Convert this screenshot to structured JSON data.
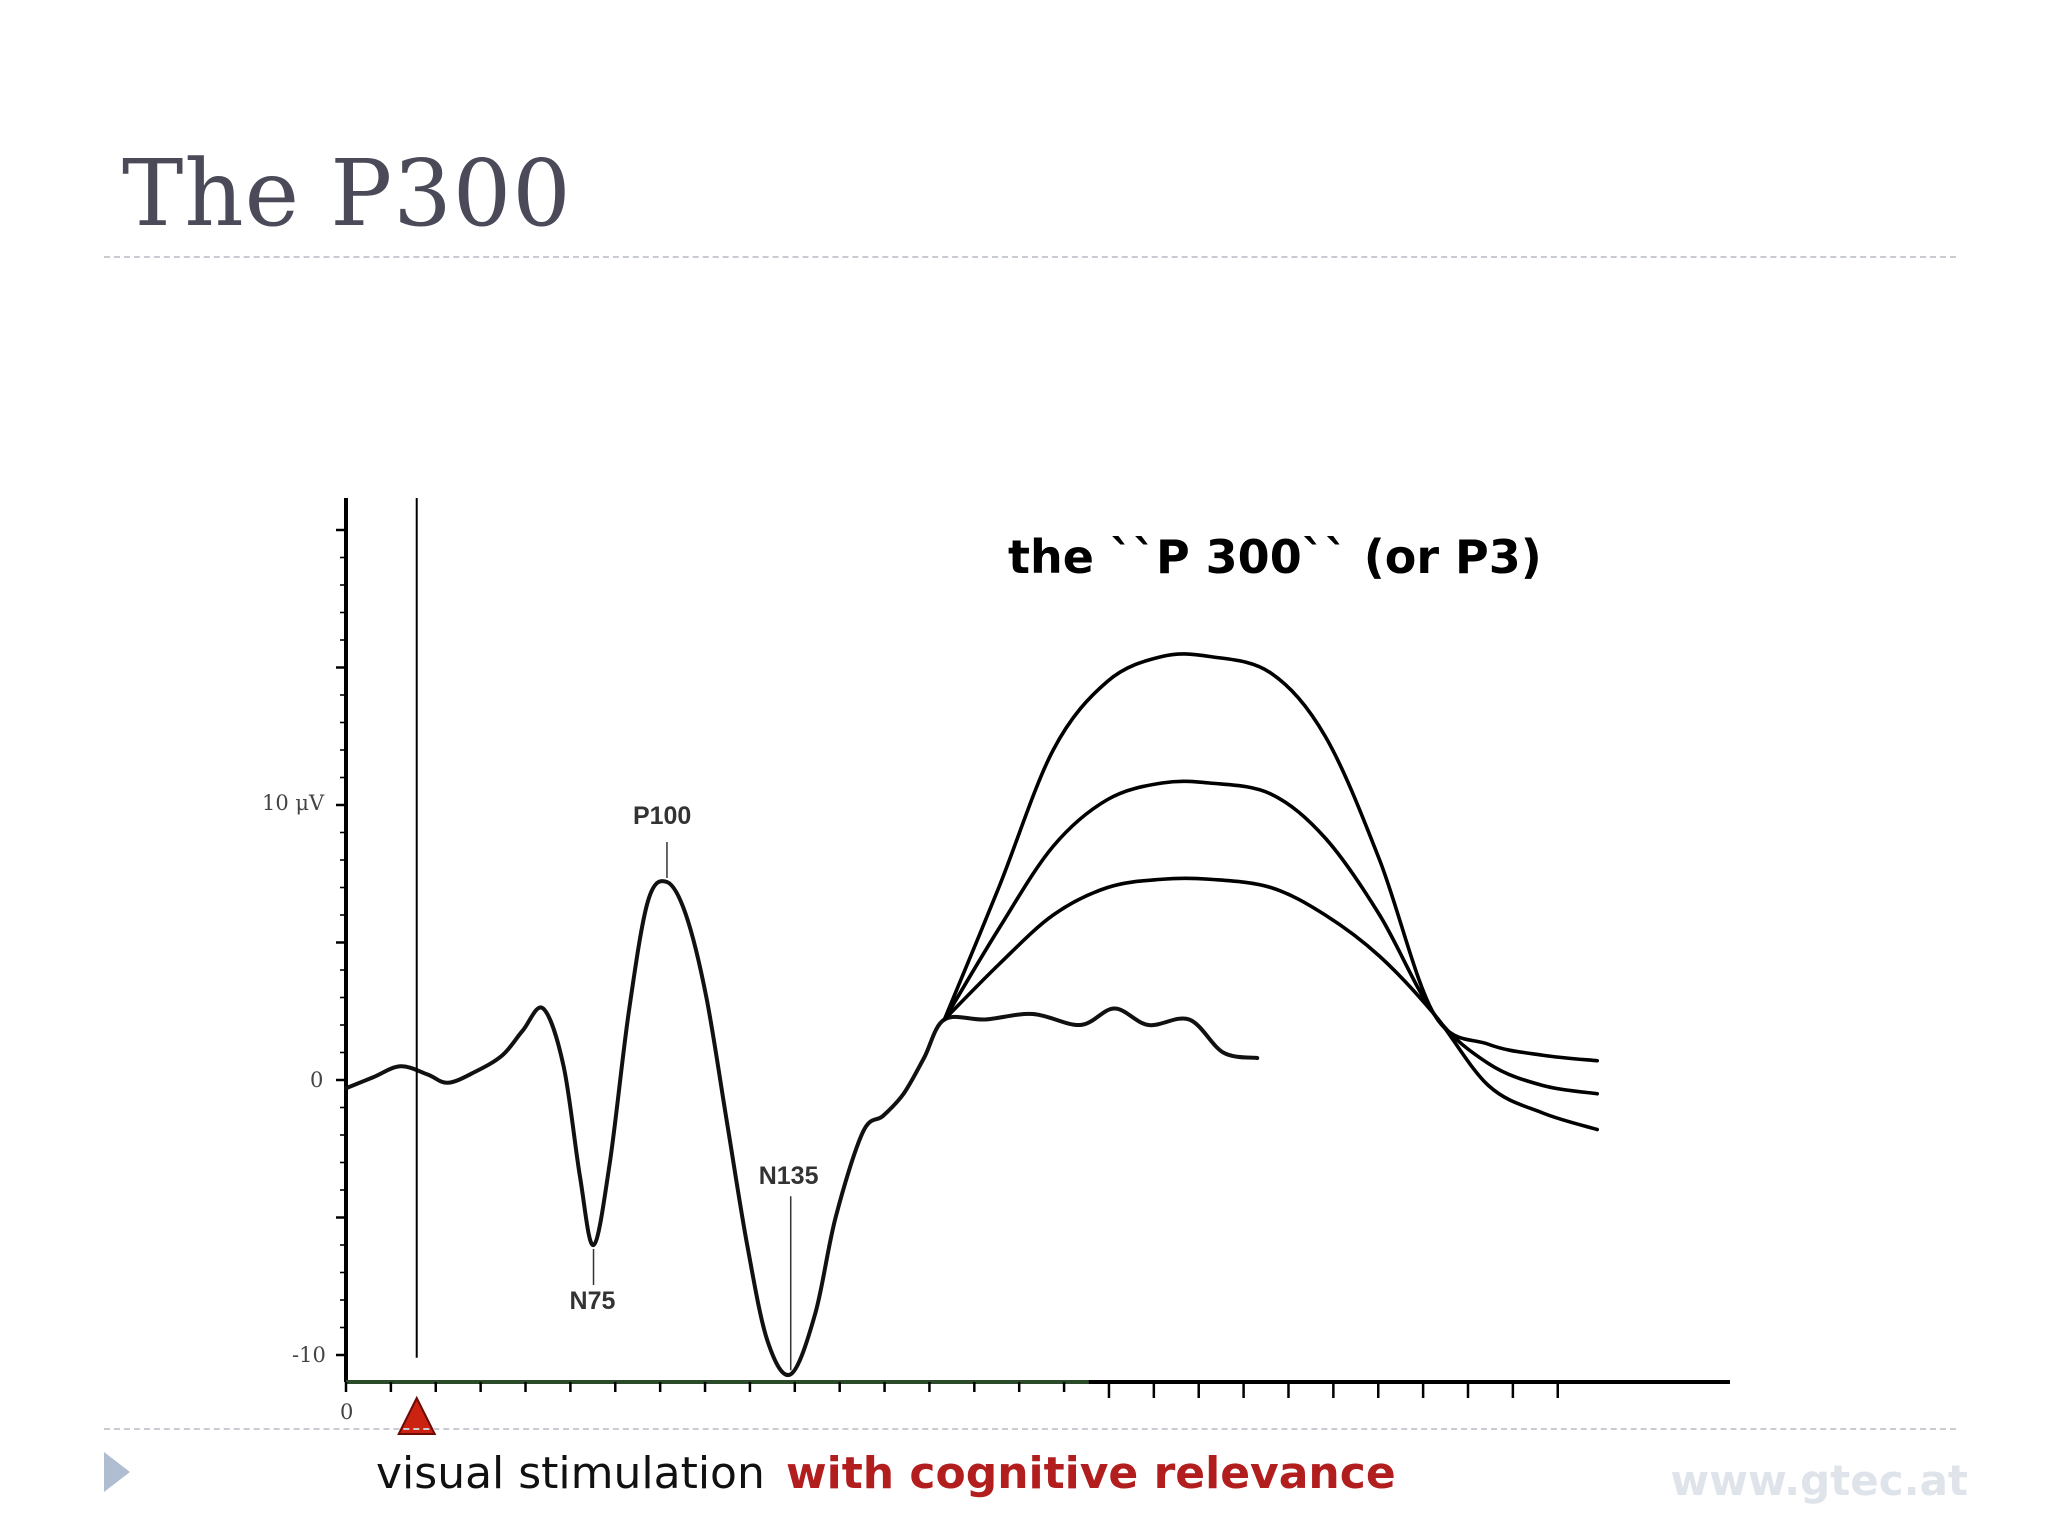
{
  "slide": {
    "title": "The P300",
    "footer_url": "www.gtec.at"
  },
  "captions": {
    "visual": "visual stimulation",
    "cognitive": "with cognitive relevance"
  },
  "chart_data": {
    "type": "line",
    "title": "the ``P 300`` (or P3)",
    "y_tick_labels": [
      "10 μV",
      "0",
      "-10"
    ],
    "x_tick_labels": [
      "0"
    ],
    "ylim": [
      -11,
      20
    ],
    "grid": false,
    "annotations": [
      {
        "label": "P100",
        "x": 236,
        "y": 7.2
      },
      {
        "label": "N75",
        "x": 182,
        "y": -6
      },
      {
        "label": "N135",
        "x": 327,
        "y": -10.7
      },
      {
        "label": "the ``P 300`` (or P3)",
        "x": 660,
        "y": 19
      }
    ],
    "stimulus_marker": {
      "x": 52,
      "label": "visual stimulation",
      "color": "#cc2211"
    },
    "series": [
      {
        "values": [
          [
            0,
            -0.3
          ],
          [
            20,
            0.1
          ],
          [
            40,
            0.5
          ],
          [
            60,
            0.2
          ],
          [
            75,
            -0.1
          ],
          [
            95,
            0.3
          ],
          [
            115,
            0.9
          ],
          [
            130,
            1.8
          ],
          [
            145,
            2.6
          ],
          [
            160,
            0.5
          ],
          [
            172,
            -3.5
          ],
          [
            182,
            -6.0
          ],
          [
            194,
            -3.0
          ],
          [
            208,
            2.5
          ],
          [
            222,
            6.5
          ],
          [
            236,
            7.2
          ],
          [
            250,
            6.0
          ],
          [
            265,
            3.0
          ],
          [
            280,
            -1.5
          ],
          [
            295,
            -6.0
          ],
          [
            310,
            -9.5
          ],
          [
            327,
            -10.7
          ],
          [
            345,
            -8.5
          ],
          [
            360,
            -5.0
          ],
          [
            380,
            -1.9
          ],
          [
            395,
            -1.3
          ],
          [
            410,
            -0.5
          ],
          [
            425,
            0.8
          ],
          [
            440,
            2.2
          ],
          [
            470,
            2.2
          ],
          [
            505,
            2.4
          ],
          [
            540,
            2.0
          ],
          [
            565,
            2.6
          ],
          [
            590,
            2.0
          ],
          [
            620,
            2.2
          ],
          [
            645,
            1.0
          ],
          [
            670,
            0.8
          ]
        ]
      },
      {
        "values": [
          [
            440,
            2.2
          ],
          [
            480,
            7.0
          ],
          [
            520,
            12.0
          ],
          [
            560,
            14.5
          ],
          [
            600,
            15.4
          ],
          [
            635,
            15.4
          ],
          [
            680,
            14.8
          ],
          [
            720,
            12.5
          ],
          [
            760,
            8.0
          ],
          [
            800,
            2.4
          ],
          [
            840,
            1.3
          ],
          [
            880,
            0.9
          ],
          [
            920,
            0.7
          ]
        ]
      },
      {
        "values": [
          [
            440,
            2.2
          ],
          [
            480,
            5.5
          ],
          [
            520,
            8.5
          ],
          [
            560,
            10.2
          ],
          [
            600,
            10.8
          ],
          [
            635,
            10.8
          ],
          [
            680,
            10.4
          ],
          [
            720,
            8.8
          ],
          [
            760,
            6.0
          ],
          [
            800,
            2.4
          ],
          [
            840,
            0.6
          ],
          [
            880,
            -0.2
          ],
          [
            920,
            -0.5
          ]
        ]
      },
      {
        "values": [
          [
            440,
            2.2
          ],
          [
            480,
            4.2
          ],
          [
            520,
            6.0
          ],
          [
            560,
            7.0
          ],
          [
            600,
            7.3
          ],
          [
            635,
            7.3
          ],
          [
            680,
            7.0
          ],
          [
            720,
            6.0
          ],
          [
            760,
            4.5
          ],
          [
            800,
            2.4
          ],
          [
            840,
            -0.2
          ],
          [
            880,
            -1.2
          ],
          [
            920,
            -1.8
          ]
        ]
      }
    ]
  }
}
